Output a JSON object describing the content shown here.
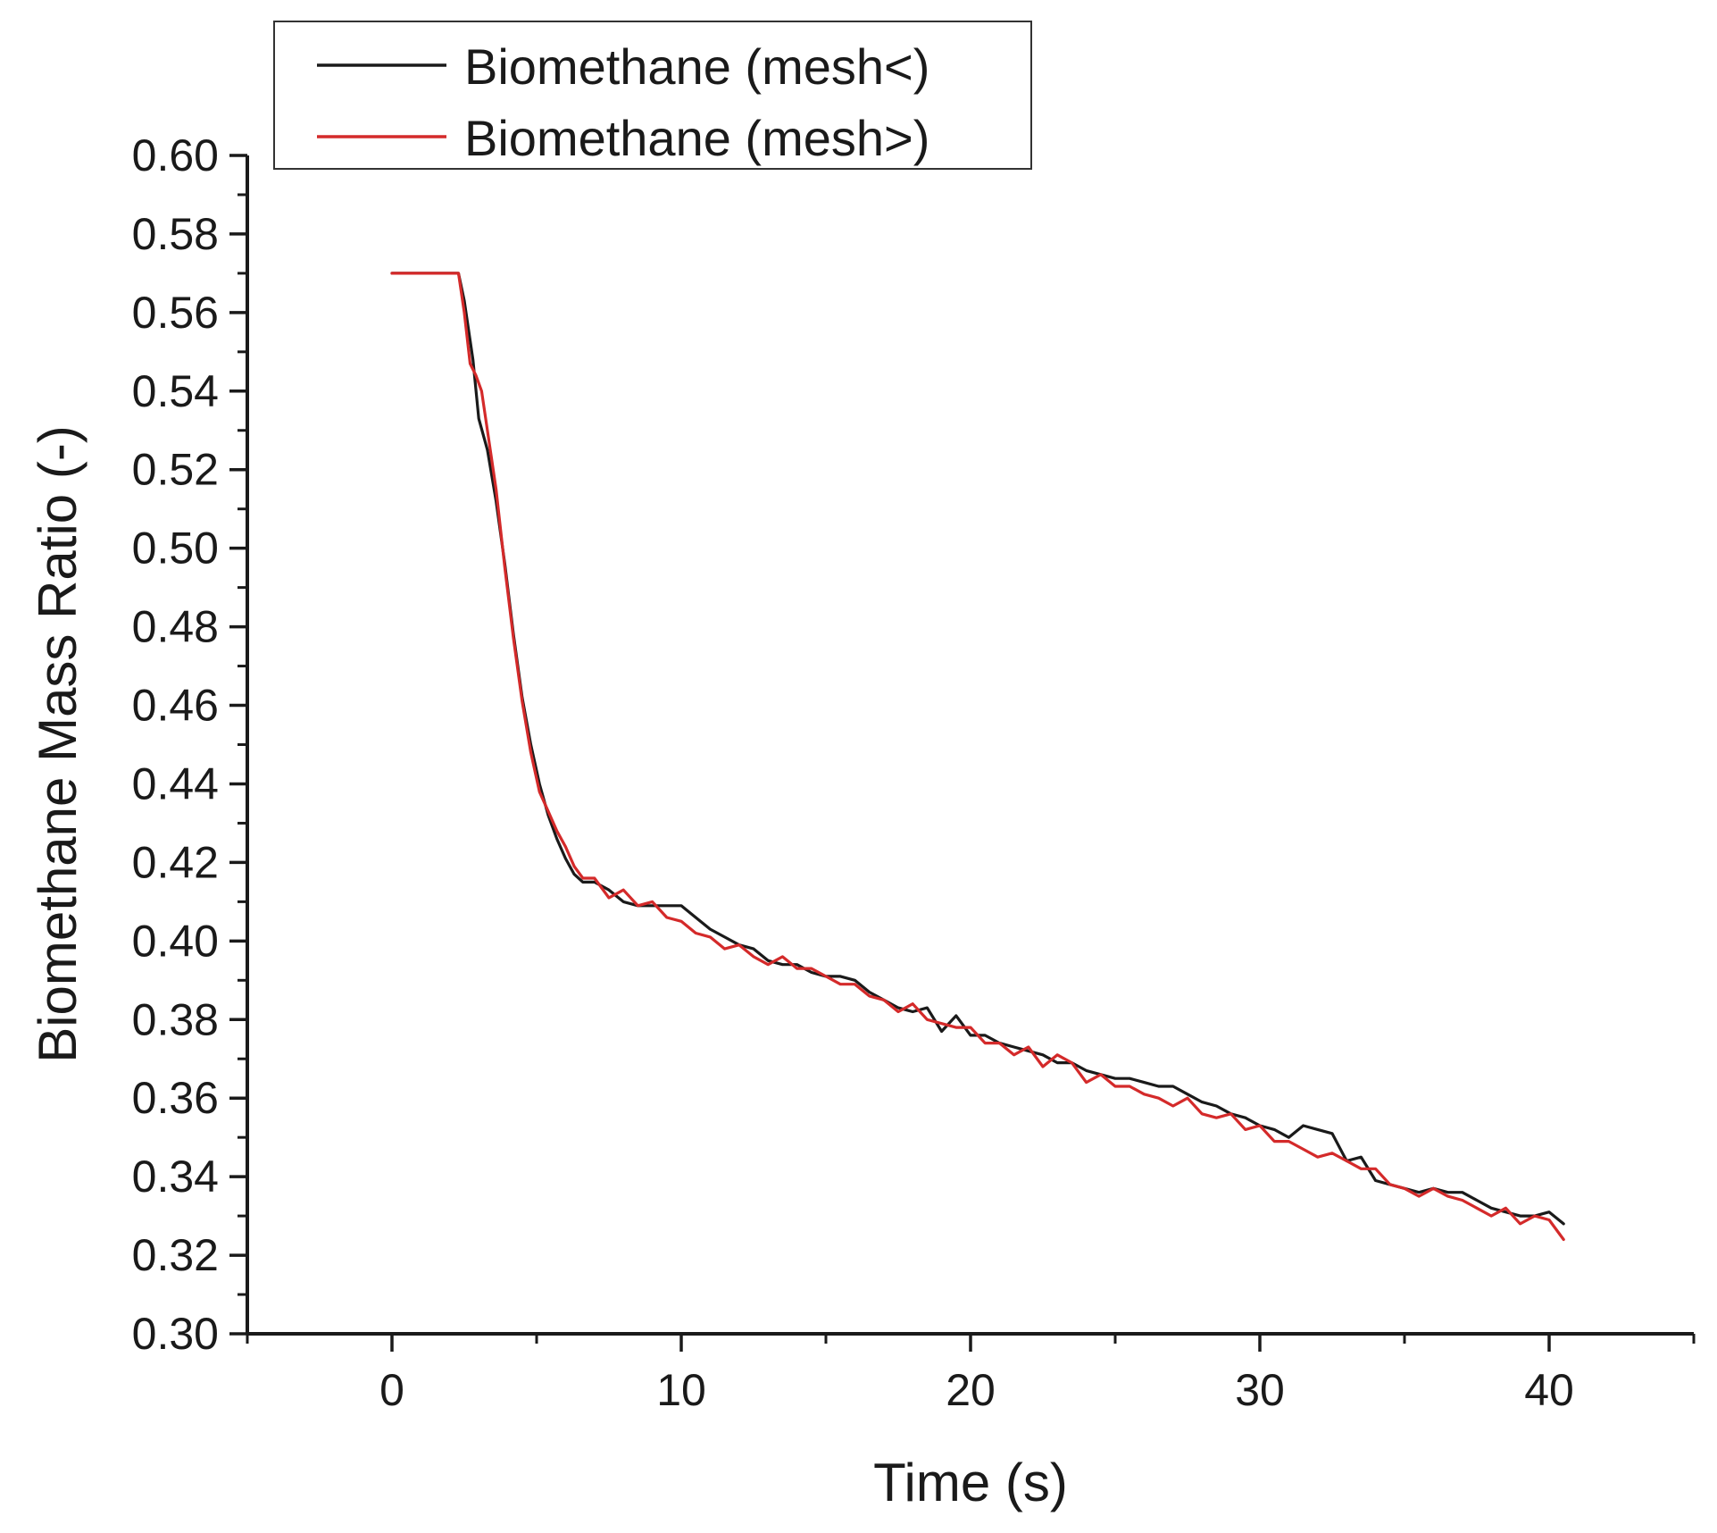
{
  "chart_data": {
    "type": "line",
    "title": "",
    "xlabel": "Time (s)",
    "ylabel": "Biomethane Mass Ratio (-)",
    "xlim": [
      -5,
      45
    ],
    "ylim": [
      0.3,
      0.6
    ],
    "xticks": [
      0,
      10,
      20,
      30,
      40
    ],
    "xtick_labels": [
      "0",
      "10",
      "20",
      "30",
      "40"
    ],
    "yticks": [
      0.3,
      0.32,
      0.34,
      0.36,
      0.38,
      0.4,
      0.42,
      0.44,
      0.46,
      0.48,
      0.5,
      0.52,
      0.54,
      0.56,
      0.58,
      0.6
    ],
    "ytick_labels": [
      "0.30",
      "0.32",
      "0.34",
      "0.36",
      "0.38",
      "0.40",
      "0.42",
      "0.44",
      "0.46",
      "0.48",
      "0.50",
      "0.52",
      "0.54",
      "0.56",
      "0.58",
      "0.60"
    ],
    "grid": false,
    "legend_position": "top-left",
    "series": [
      {
        "name": "Biomethane (mesh<)",
        "color": "#1a1a1a",
        "x": [
          0,
          1,
          2,
          2.3,
          2.5,
          2.8,
          3.0,
          3.3,
          3.6,
          3.9,
          4.2,
          4.5,
          4.8,
          5.1,
          5.4,
          5.7,
          6.0,
          6.3,
          6.6,
          7.0,
          7.5,
          8.0,
          8.5,
          9.0,
          9.5,
          10.0,
          10.5,
          11.0,
          11.5,
          12.0,
          12.5,
          13.0,
          13.5,
          14.0,
          14.5,
          15.0,
          15.5,
          16.0,
          16.5,
          17.0,
          17.5,
          18.0,
          18.5,
          19.0,
          19.5,
          20.0,
          20.5,
          21.0,
          21.5,
          22.0,
          22.5,
          23.0,
          23.5,
          24.0,
          24.5,
          25.0,
          25.5,
          26.0,
          26.5,
          27.0,
          27.5,
          28.0,
          28.5,
          29.0,
          29.5,
          30.0,
          30.5,
          31.0,
          31.5,
          32.0,
          32.5,
          33.0,
          33.5,
          34.0,
          34.5,
          35.0,
          35.5,
          36.0,
          36.5,
          37.0,
          37.5,
          38.0,
          38.5,
          39.0,
          39.5,
          40.0,
          40.5
        ],
        "y": [
          0.57,
          0.57,
          0.57,
          0.57,
          0.563,
          0.548,
          0.533,
          0.525,
          0.512,
          0.496,
          0.478,
          0.462,
          0.45,
          0.44,
          0.432,
          0.426,
          0.421,
          0.417,
          0.415,
          0.415,
          0.413,
          0.41,
          0.409,
          0.409,
          0.409,
          0.409,
          0.406,
          0.403,
          0.401,
          0.399,
          0.398,
          0.395,
          0.394,
          0.394,
          0.392,
          0.391,
          0.391,
          0.39,
          0.387,
          0.385,
          0.383,
          0.382,
          0.383,
          0.377,
          0.381,
          0.376,
          0.376,
          0.374,
          0.373,
          0.372,
          0.371,
          0.369,
          0.369,
          0.367,
          0.366,
          0.365,
          0.365,
          0.364,
          0.363,
          0.363,
          0.361,
          0.359,
          0.358,
          0.356,
          0.355,
          0.353,
          0.352,
          0.35,
          0.353,
          0.352,
          0.351,
          0.344,
          0.345,
          0.339,
          0.338,
          0.337,
          0.336,
          0.337,
          0.336,
          0.336,
          0.334,
          0.332,
          0.331,
          0.33,
          0.33,
          0.331,
          0.328
        ]
      },
      {
        "name": "Biomethane (mesh>)",
        "color": "#d42a2a",
        "x": [
          0,
          1,
          2,
          2.3,
          2.5,
          2.7,
          2.9,
          3.1,
          3.3,
          3.6,
          3.9,
          4.2,
          4.5,
          4.8,
          5.1,
          5.4,
          5.7,
          6.0,
          6.3,
          6.6,
          7.0,
          7.5,
          8.0,
          8.5,
          9.0,
          9.5,
          10.0,
          10.5,
          11.0,
          11.5,
          12.0,
          12.5,
          13.0,
          13.5,
          14.0,
          14.5,
          15.0,
          15.5,
          16.0,
          16.5,
          17.0,
          17.5,
          18.0,
          18.5,
          19.0,
          19.5,
          20.0,
          20.5,
          21.0,
          21.5,
          22.0,
          22.5,
          23.0,
          23.5,
          24.0,
          24.5,
          25.0,
          25.5,
          26.0,
          26.5,
          27.0,
          27.5,
          28.0,
          28.5,
          29.0,
          29.5,
          30.0,
          30.5,
          31.0,
          31.5,
          32.0,
          32.5,
          33.0,
          33.5,
          34.0,
          34.5,
          35.0,
          35.5,
          36.0,
          36.5,
          37.0,
          37.5,
          38.0,
          38.5,
          39.0,
          39.5,
          40.0,
          40.5
        ],
        "y": [
          0.57,
          0.57,
          0.57,
          0.57,
          0.56,
          0.547,
          0.544,
          0.54,
          0.53,
          0.515,
          0.495,
          0.477,
          0.461,
          0.448,
          0.438,
          0.433,
          0.428,
          0.424,
          0.419,
          0.416,
          0.416,
          0.411,
          0.413,
          0.409,
          0.41,
          0.406,
          0.405,
          0.402,
          0.401,
          0.398,
          0.399,
          0.396,
          0.394,
          0.396,
          0.393,
          0.393,
          0.391,
          0.389,
          0.389,
          0.386,
          0.385,
          0.382,
          0.384,
          0.38,
          0.379,
          0.378,
          0.378,
          0.374,
          0.374,
          0.371,
          0.373,
          0.368,
          0.371,
          0.369,
          0.364,
          0.366,
          0.363,
          0.363,
          0.361,
          0.36,
          0.358,
          0.36,
          0.356,
          0.355,
          0.356,
          0.352,
          0.353,
          0.349,
          0.349,
          0.347,
          0.345,
          0.346,
          0.344,
          0.342,
          0.342,
          0.338,
          0.337,
          0.335,
          0.337,
          0.335,
          0.334,
          0.332,
          0.33,
          0.332,
          0.328,
          0.33,
          0.329,
          0.324
        ]
      }
    ]
  }
}
